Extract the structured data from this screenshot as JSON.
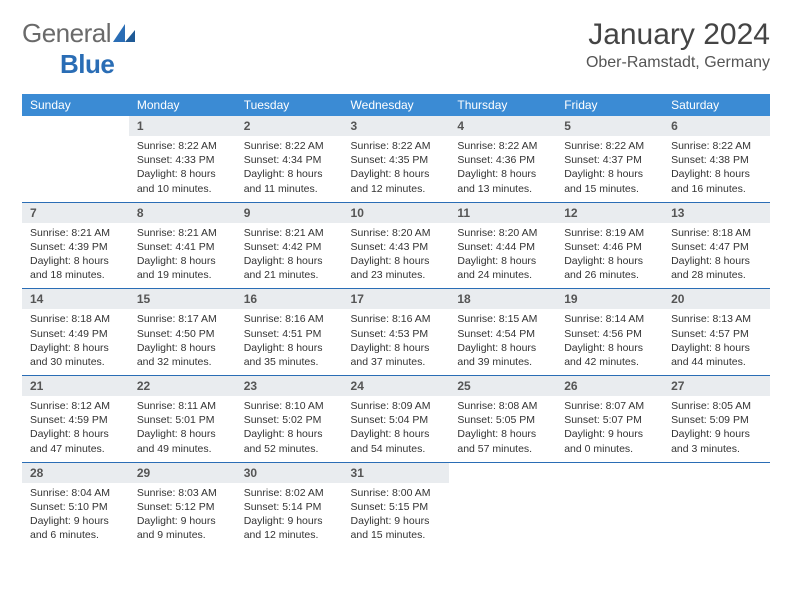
{
  "brand": {
    "general": "General",
    "blue": "Blue"
  },
  "title": "January 2024",
  "location": "Ober-Ramstadt, Germany",
  "colors": {
    "header_bg": "#3b8bd4",
    "header_text": "#ffffff",
    "daynum_bg": "#e9ecef",
    "rule": "#2a6db5",
    "brand_blue": "#2a6db5",
    "brand_gray": "#6a6a6a"
  },
  "font": {
    "body_size_pt": 8,
    "title_size_pt": 22,
    "location_size_pt": 12
  },
  "weekdays": [
    "Sunday",
    "Monday",
    "Tuesday",
    "Wednesday",
    "Thursday",
    "Friday",
    "Saturday"
  ],
  "weeks": [
    [
      {
        "n": "",
        "sr": "",
        "ss": "",
        "dl": "",
        "empty": true
      },
      {
        "n": "1",
        "sr": "Sunrise: 8:22 AM",
        "ss": "Sunset: 4:33 PM",
        "dl": "Daylight: 8 hours and 10 minutes."
      },
      {
        "n": "2",
        "sr": "Sunrise: 8:22 AM",
        "ss": "Sunset: 4:34 PM",
        "dl": "Daylight: 8 hours and 11 minutes."
      },
      {
        "n": "3",
        "sr": "Sunrise: 8:22 AM",
        "ss": "Sunset: 4:35 PM",
        "dl": "Daylight: 8 hours and 12 minutes."
      },
      {
        "n": "4",
        "sr": "Sunrise: 8:22 AM",
        "ss": "Sunset: 4:36 PM",
        "dl": "Daylight: 8 hours and 13 minutes."
      },
      {
        "n": "5",
        "sr": "Sunrise: 8:22 AM",
        "ss": "Sunset: 4:37 PM",
        "dl": "Daylight: 8 hours and 15 minutes."
      },
      {
        "n": "6",
        "sr": "Sunrise: 8:22 AM",
        "ss": "Sunset: 4:38 PM",
        "dl": "Daylight: 8 hours and 16 minutes."
      }
    ],
    [
      {
        "n": "7",
        "sr": "Sunrise: 8:21 AM",
        "ss": "Sunset: 4:39 PM",
        "dl": "Daylight: 8 hours and 18 minutes."
      },
      {
        "n": "8",
        "sr": "Sunrise: 8:21 AM",
        "ss": "Sunset: 4:41 PM",
        "dl": "Daylight: 8 hours and 19 minutes."
      },
      {
        "n": "9",
        "sr": "Sunrise: 8:21 AM",
        "ss": "Sunset: 4:42 PM",
        "dl": "Daylight: 8 hours and 21 minutes."
      },
      {
        "n": "10",
        "sr": "Sunrise: 8:20 AM",
        "ss": "Sunset: 4:43 PM",
        "dl": "Daylight: 8 hours and 23 minutes."
      },
      {
        "n": "11",
        "sr": "Sunrise: 8:20 AM",
        "ss": "Sunset: 4:44 PM",
        "dl": "Daylight: 8 hours and 24 minutes."
      },
      {
        "n": "12",
        "sr": "Sunrise: 8:19 AM",
        "ss": "Sunset: 4:46 PM",
        "dl": "Daylight: 8 hours and 26 minutes."
      },
      {
        "n": "13",
        "sr": "Sunrise: 8:18 AM",
        "ss": "Sunset: 4:47 PM",
        "dl": "Daylight: 8 hours and 28 minutes."
      }
    ],
    [
      {
        "n": "14",
        "sr": "Sunrise: 8:18 AM",
        "ss": "Sunset: 4:49 PM",
        "dl": "Daylight: 8 hours and 30 minutes."
      },
      {
        "n": "15",
        "sr": "Sunrise: 8:17 AM",
        "ss": "Sunset: 4:50 PM",
        "dl": "Daylight: 8 hours and 32 minutes."
      },
      {
        "n": "16",
        "sr": "Sunrise: 8:16 AM",
        "ss": "Sunset: 4:51 PM",
        "dl": "Daylight: 8 hours and 35 minutes."
      },
      {
        "n": "17",
        "sr": "Sunrise: 8:16 AM",
        "ss": "Sunset: 4:53 PM",
        "dl": "Daylight: 8 hours and 37 minutes."
      },
      {
        "n": "18",
        "sr": "Sunrise: 8:15 AM",
        "ss": "Sunset: 4:54 PM",
        "dl": "Daylight: 8 hours and 39 minutes."
      },
      {
        "n": "19",
        "sr": "Sunrise: 8:14 AM",
        "ss": "Sunset: 4:56 PM",
        "dl": "Daylight: 8 hours and 42 minutes."
      },
      {
        "n": "20",
        "sr": "Sunrise: 8:13 AM",
        "ss": "Sunset: 4:57 PM",
        "dl": "Daylight: 8 hours and 44 minutes."
      }
    ],
    [
      {
        "n": "21",
        "sr": "Sunrise: 8:12 AM",
        "ss": "Sunset: 4:59 PM",
        "dl": "Daylight: 8 hours and 47 minutes."
      },
      {
        "n": "22",
        "sr": "Sunrise: 8:11 AM",
        "ss": "Sunset: 5:01 PM",
        "dl": "Daylight: 8 hours and 49 minutes."
      },
      {
        "n": "23",
        "sr": "Sunrise: 8:10 AM",
        "ss": "Sunset: 5:02 PM",
        "dl": "Daylight: 8 hours and 52 minutes."
      },
      {
        "n": "24",
        "sr": "Sunrise: 8:09 AM",
        "ss": "Sunset: 5:04 PM",
        "dl": "Daylight: 8 hours and 54 minutes."
      },
      {
        "n": "25",
        "sr": "Sunrise: 8:08 AM",
        "ss": "Sunset: 5:05 PM",
        "dl": "Daylight: 8 hours and 57 minutes."
      },
      {
        "n": "26",
        "sr": "Sunrise: 8:07 AM",
        "ss": "Sunset: 5:07 PM",
        "dl": "Daylight: 9 hours and 0 minutes."
      },
      {
        "n": "27",
        "sr": "Sunrise: 8:05 AM",
        "ss": "Sunset: 5:09 PM",
        "dl": "Daylight: 9 hours and 3 minutes."
      }
    ],
    [
      {
        "n": "28",
        "sr": "Sunrise: 8:04 AM",
        "ss": "Sunset: 5:10 PM",
        "dl": "Daylight: 9 hours and 6 minutes."
      },
      {
        "n": "29",
        "sr": "Sunrise: 8:03 AM",
        "ss": "Sunset: 5:12 PM",
        "dl": "Daylight: 9 hours and 9 minutes."
      },
      {
        "n": "30",
        "sr": "Sunrise: 8:02 AM",
        "ss": "Sunset: 5:14 PM",
        "dl": "Daylight: 9 hours and 12 minutes."
      },
      {
        "n": "31",
        "sr": "Sunrise: 8:00 AM",
        "ss": "Sunset: 5:15 PM",
        "dl": "Daylight: 9 hours and 15 minutes."
      },
      {
        "n": "",
        "sr": "",
        "ss": "",
        "dl": "",
        "empty": true
      },
      {
        "n": "",
        "sr": "",
        "ss": "",
        "dl": "",
        "empty": true
      },
      {
        "n": "",
        "sr": "",
        "ss": "",
        "dl": "",
        "empty": true
      }
    ]
  ]
}
